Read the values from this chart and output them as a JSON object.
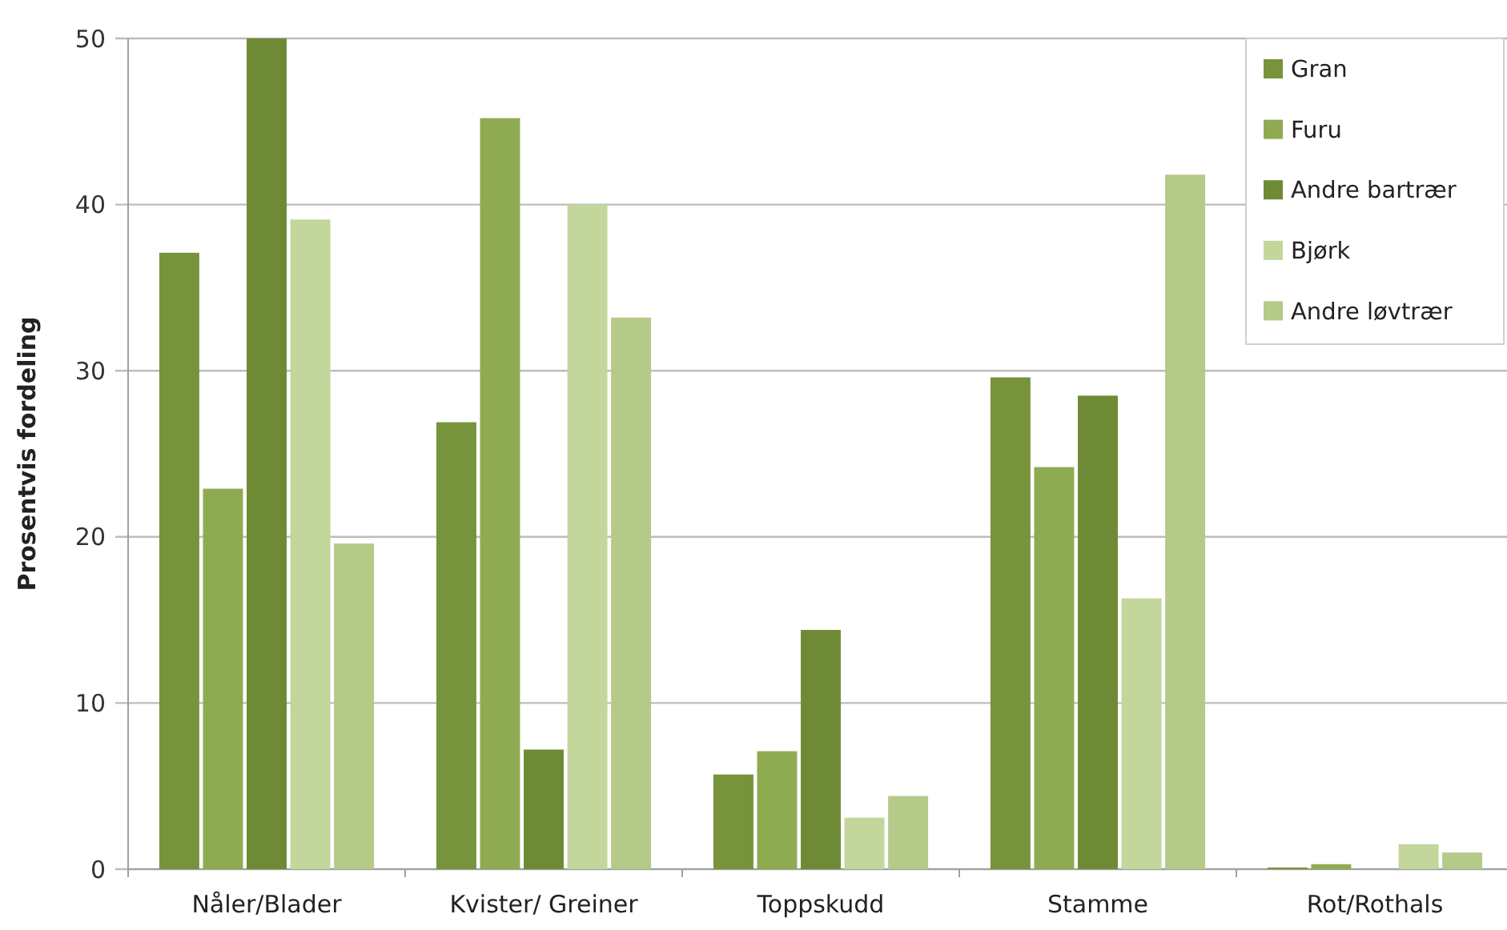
{
  "chart_data": {
    "type": "bar",
    "ylabel": "Prosentvis  fordeling",
    "categories": [
      "Nåler/Blader",
      "Kvister/ Greiner",
      "Toppskudd",
      "Stamme",
      "Rot/Rothals"
    ],
    "series": [
      {
        "name": "Gran",
        "color": "#77933c",
        "values": [
          37.1,
          26.9,
          5.7,
          29.6,
          0.1
        ]
      },
      {
        "name": "Furu",
        "color": "#8fab51",
        "values": [
          22.9,
          45.2,
          7.1,
          24.2,
          0.3
        ]
      },
      {
        "name": "Andre bartrær",
        "color": "#6f8a35",
        "values": [
          50,
          7.2,
          14.4,
          28.5,
          0
        ]
      },
      {
        "name": "Bjørk",
        "color": "#c3d69b",
        "values": [
          39.1,
          40.0,
          3.1,
          16.3,
          1.5
        ]
      },
      {
        "name": "Andre løvtrær",
        "color": "#b5ca88",
        "values": [
          19.6,
          33.2,
          4.4,
          41.8,
          1.0
        ]
      }
    ],
    "ylim": [
      0,
      50
    ],
    "yticks": [
      0,
      10,
      20,
      30,
      40,
      50
    ],
    "grid": "y",
    "legend": "top right"
  }
}
